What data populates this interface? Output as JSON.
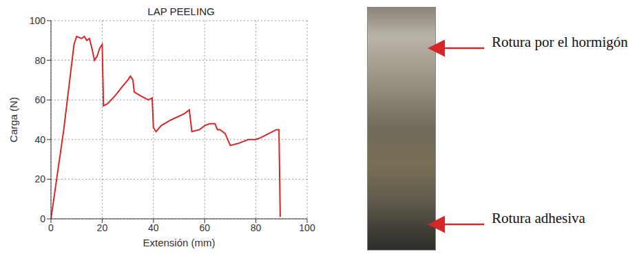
{
  "chart_data": {
    "type": "line",
    "title": "LAP PEELING",
    "x_label": "Extensión (mm)",
    "y_label": "Carga (N)",
    "x": [
      0,
      5,
      9,
      10,
      12,
      13,
      14,
      15,
      16,
      17,
      18,
      19,
      20,
      20.5,
      22,
      25,
      28,
      30,
      31,
      32,
      32.5,
      35,
      38,
      39.5,
      40,
      41,
      43,
      47,
      52,
      54,
      55,
      58,
      60,
      62,
      64,
      65,
      66,
      68,
      69,
      70,
      73,
      77,
      80,
      82,
      85,
      88,
      89,
      89.5
    ],
    "series": [
      {
        "name": "LAP PEELING",
        "color": "#d62728",
        "values": [
          0,
          45,
          88,
          92,
          91,
          92,
          90,
          91,
          86,
          80,
          82,
          86,
          88,
          57,
          58,
          62,
          67,
          70,
          72,
          70,
          64,
          62,
          60,
          61,
          46,
          44,
          47,
          50,
          53,
          55,
          44,
          45,
          47,
          48,
          48,
          45,
          45,
          43,
          40,
          37,
          38,
          40,
          40,
          41,
          43,
          45,
          45,
          1
        ]
      }
    ],
    "xlim": [
      0,
      100
    ],
    "xticks": [
      0,
      20,
      40,
      60,
      80,
      100
    ],
    "ylim": [
      0,
      100
    ],
    "yticks": [
      0,
      20,
      40,
      60,
      80,
      100
    ],
    "grid": true,
    "annotations": [
      "Rotura por el hormigón",
      "Rotura adhesiva"
    ]
  }
}
